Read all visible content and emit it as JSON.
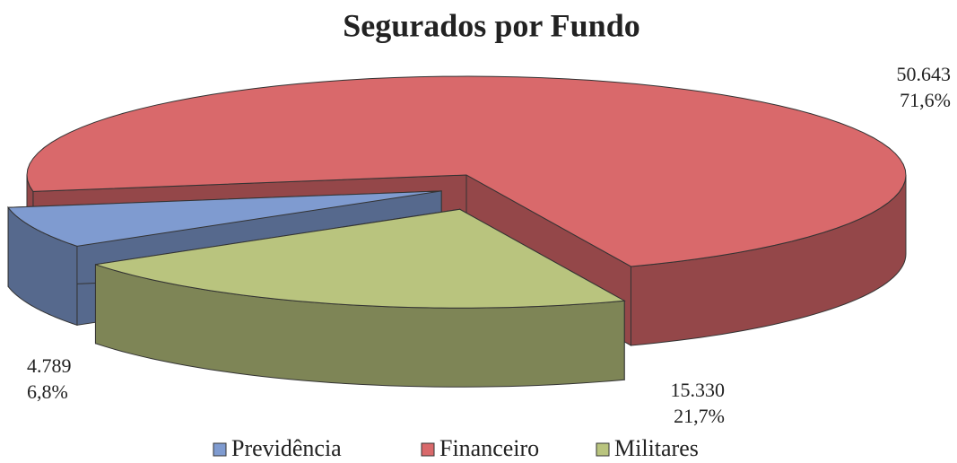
{
  "chart_data": {
    "type": "pie3d",
    "title": "Segurados por Fundo",
    "categories": [
      "Previdência",
      "Financeiro",
      "Militares"
    ],
    "values": [
      4789,
      50643,
      15330
    ],
    "value_labels": [
      "4.789",
      "50.643",
      "15.330"
    ],
    "percents": [
      6.8,
      71.6,
      21.7
    ],
    "percent_labels": [
      "6,8%",
      "71,6%",
      "21,7%"
    ],
    "colors": [
      "#7f9bd0",
      "#d9696b",
      "#b9c47e"
    ],
    "legend": "bottom"
  }
}
